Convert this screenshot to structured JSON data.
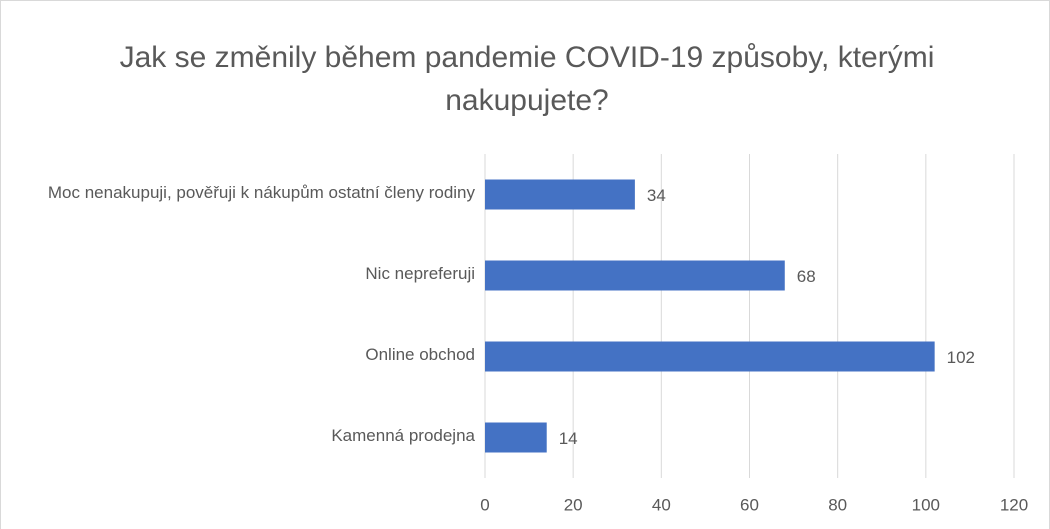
{
  "chart_data": {
    "type": "bar",
    "orientation": "horizontal",
    "title": "Jak se změnily během pandemie COVID-19 způsoby, kterými nakupujete?",
    "categories": [
      "Moc nenakupuji, pověřuji k nákupům ostatní členy rodiny",
      "Nic nepreferuji",
      "Online obchod",
      "Kamenná prodejna"
    ],
    "values": [
      34,
      68,
      102,
      14
    ],
    "color": "#4472c4",
    "xlim": [
      0,
      120
    ],
    "xticks": [
      0,
      20,
      40,
      60,
      80,
      100,
      120
    ],
    "grid": true,
    "data_labels": true
  }
}
